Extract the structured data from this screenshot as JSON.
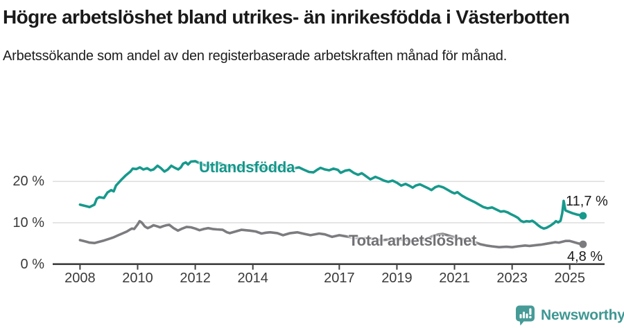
{
  "header": {
    "title": "Högre arbetslöshet bland utrikes- än inrikesfödda i Västerbotten",
    "subtitle": "Arbetssökande som andel av den registerbaserade arbetskraften månad för månad."
  },
  "footer": {
    "brand": "Newsworthy"
  },
  "colors": {
    "teal_line": "#17998C",
    "teal_label": "#14968A",
    "gray_line": "#7C7C80",
    "gray_label": "#717175",
    "grid": "#D9D9D9",
    "axis": "#3F3F3F",
    "tick_text": "#3A3A3A",
    "annotation_text": "#1A1A1A",
    "brand_teal": "#469B97",
    "brand_text": "#3E9792"
  },
  "chart_data": {
    "type": "line",
    "title": "Högre arbetslöshet bland utrikes- än inrikesfödda i Västerbotten",
    "subtitle": "Arbetssökande som andel av den registerbaserade arbetskraften månad för månad.",
    "unit": "%",
    "grid": true,
    "legend_position": "inline-labels",
    "x_axis": {
      "range": [
        2007.05,
        2026.2
      ],
      "ticks": [
        {
          "value": 2008,
          "label": "2008"
        },
        {
          "value": 2010,
          "label": "2010"
        },
        {
          "value": 2012,
          "label": "2012"
        },
        {
          "value": 2014,
          "label": "2014"
        },
        {
          "value": 2017,
          "label": "2017"
        },
        {
          "value": 2019,
          "label": "2019"
        },
        {
          "value": 2021,
          "label": "2021"
        },
        {
          "value": 2023,
          "label": "2023"
        },
        {
          "value": 2025,
          "label": "2025"
        }
      ]
    },
    "y_axis": {
      "range": [
        0,
        26.5
      ],
      "ticks": [
        {
          "value": 0,
          "label": "0 %"
        },
        {
          "value": 10,
          "label": "10 %"
        },
        {
          "value": 20,
          "label": "20 %"
        }
      ]
    },
    "series": [
      {
        "name": "Utlandsfödda",
        "end_label": "11,7 %",
        "end_value": 11.7,
        "color": "#17998C",
        "points": [
          [
            2008.0,
            14.4
          ],
          [
            2008.17,
            14.1
          ],
          [
            2008.33,
            13.8
          ],
          [
            2008.5,
            14.4
          ],
          [
            2008.58,
            15.8
          ],
          [
            2008.67,
            16.2
          ],
          [
            2008.83,
            16.0
          ],
          [
            2008.95,
            17.3
          ],
          [
            2009.08,
            17.9
          ],
          [
            2009.17,
            17.6
          ],
          [
            2009.25,
            19.0
          ],
          [
            2009.42,
            20.3
          ],
          [
            2009.58,
            21.4
          ],
          [
            2009.75,
            22.4
          ],
          [
            2009.83,
            23.1
          ],
          [
            2009.96,
            23.0
          ],
          [
            2010.08,
            23.4
          ],
          [
            2010.2,
            22.9
          ],
          [
            2010.33,
            23.2
          ],
          [
            2010.45,
            22.7
          ],
          [
            2010.55,
            22.9
          ],
          [
            2010.69,
            23.8
          ],
          [
            2010.81,
            23.2
          ],
          [
            2010.93,
            22.4
          ],
          [
            2011.05,
            22.9
          ],
          [
            2011.17,
            23.8
          ],
          [
            2011.29,
            23.3
          ],
          [
            2011.41,
            22.9
          ],
          [
            2011.5,
            23.4
          ],
          [
            2011.58,
            24.3
          ],
          [
            2011.67,
            24.6
          ],
          [
            2011.75,
            24.1
          ],
          [
            2011.85,
            24.8
          ],
          [
            2012.0,
            24.9
          ],
          [
            2012.15,
            24.4
          ],
          [
            2012.3,
            24.0
          ],
          [
            2012.5,
            23.6
          ],
          [
            2012.7,
            24.1
          ],
          [
            2012.85,
            24.4
          ],
          [
            2013.0,
            24.0
          ],
          [
            2013.25,
            23.5
          ],
          [
            2013.5,
            23.2
          ],
          [
            2013.75,
            23.7
          ],
          [
            2014.0,
            23.9
          ],
          [
            2014.25,
            23.4
          ],
          [
            2014.5,
            23.0
          ],
          [
            2014.75,
            23.3
          ],
          [
            2015.0,
            23.5
          ],
          [
            2015.25,
            23.1
          ],
          [
            2015.45,
            23.2
          ],
          [
            2015.6,
            23.4
          ],
          [
            2015.75,
            22.9
          ],
          [
            2015.95,
            22.3
          ],
          [
            2016.1,
            22.2
          ],
          [
            2016.25,
            22.9
          ],
          [
            2016.35,
            23.3
          ],
          [
            2016.5,
            22.9
          ],
          [
            2016.65,
            22.7
          ],
          [
            2016.8,
            23.1
          ],
          [
            2016.95,
            22.8
          ],
          [
            2017.05,
            22.1
          ],
          [
            2017.2,
            22.6
          ],
          [
            2017.35,
            22.8
          ],
          [
            2017.5,
            22.1
          ],
          [
            2017.65,
            21.6
          ],
          [
            2017.78,
            22.0
          ],
          [
            2017.92,
            21.3
          ],
          [
            2018.08,
            20.5
          ],
          [
            2018.25,
            21.1
          ],
          [
            2018.4,
            20.7
          ],
          [
            2018.55,
            20.2
          ],
          [
            2018.7,
            19.9
          ],
          [
            2018.85,
            20.2
          ],
          [
            2019.0,
            19.7
          ],
          [
            2019.15,
            19.0
          ],
          [
            2019.3,
            19.4
          ],
          [
            2019.45,
            18.9
          ],
          [
            2019.55,
            18.5
          ],
          [
            2019.65,
            19.0
          ],
          [
            2019.8,
            19.3
          ],
          [
            2019.95,
            18.8
          ],
          [
            2020.1,
            18.3
          ],
          [
            2020.2,
            17.9
          ],
          [
            2020.33,
            18.6
          ],
          [
            2020.45,
            18.9
          ],
          [
            2020.6,
            18.6
          ],
          [
            2020.75,
            18.0
          ],
          [
            2020.9,
            17.4
          ],
          [
            2021.0,
            17.1
          ],
          [
            2021.1,
            17.4
          ],
          [
            2021.25,
            16.6
          ],
          [
            2021.4,
            16.0
          ],
          [
            2021.55,
            15.5
          ],
          [
            2021.7,
            15.0
          ],
          [
            2021.85,
            14.4
          ],
          [
            2022.0,
            13.8
          ],
          [
            2022.15,
            13.5
          ],
          [
            2022.3,
            13.7
          ],
          [
            2022.45,
            13.2
          ],
          [
            2022.6,
            12.7
          ],
          [
            2022.72,
            12.8
          ],
          [
            2022.85,
            12.5
          ],
          [
            2022.95,
            12.1
          ],
          [
            2023.1,
            11.6
          ],
          [
            2023.2,
            11.2
          ],
          [
            2023.3,
            10.5
          ],
          [
            2023.4,
            10.2
          ],
          [
            2023.5,
            10.4
          ],
          [
            2023.6,
            10.3
          ],
          [
            2023.7,
            10.5
          ],
          [
            2023.8,
            10.0
          ],
          [
            2023.9,
            9.4
          ],
          [
            2024.0,
            8.9
          ],
          [
            2024.1,
            8.6
          ],
          [
            2024.2,
            8.8
          ],
          [
            2024.33,
            9.3
          ],
          [
            2024.45,
            9.9
          ],
          [
            2024.52,
            10.4
          ],
          [
            2024.6,
            10.1
          ],
          [
            2024.68,
            10.5
          ],
          [
            2024.74,
            12.3
          ],
          [
            2024.79,
            15.3
          ],
          [
            2024.85,
            13.0
          ],
          [
            2024.95,
            12.7
          ],
          [
            2025.1,
            12.3
          ],
          [
            2025.25,
            12.0
          ],
          [
            2025.46,
            11.7
          ]
        ]
      },
      {
        "name": "Total arbetslöshet",
        "end_label": "4,8 %",
        "end_value": 4.8,
        "color": "#7C7C80",
        "points": [
          [
            2008.0,
            5.8
          ],
          [
            2008.17,
            5.5
          ],
          [
            2008.33,
            5.2
          ],
          [
            2008.5,
            5.1
          ],
          [
            2008.67,
            5.4
          ],
          [
            2008.83,
            5.7
          ],
          [
            2009.0,
            6.1
          ],
          [
            2009.17,
            6.5
          ],
          [
            2009.33,
            7.0
          ],
          [
            2009.5,
            7.5
          ],
          [
            2009.63,
            7.9
          ],
          [
            2009.72,
            8.3
          ],
          [
            2009.8,
            8.6
          ],
          [
            2009.88,
            8.5
          ],
          [
            2010.0,
            9.6
          ],
          [
            2010.07,
            10.4
          ],
          [
            2010.15,
            10.0
          ],
          [
            2010.25,
            9.1
          ],
          [
            2010.35,
            8.7
          ],
          [
            2010.45,
            9.0
          ],
          [
            2010.55,
            9.4
          ],
          [
            2010.65,
            9.2
          ],
          [
            2010.78,
            8.9
          ],
          [
            2010.9,
            9.2
          ],
          [
            2011.0,
            9.4
          ],
          [
            2011.1,
            9.5
          ],
          [
            2011.25,
            8.7
          ],
          [
            2011.4,
            8.1
          ],
          [
            2011.55,
            8.6
          ],
          [
            2011.7,
            9.0
          ],
          [
            2011.85,
            8.9
          ],
          [
            2012.0,
            8.6
          ],
          [
            2012.15,
            8.2
          ],
          [
            2012.3,
            8.5
          ],
          [
            2012.45,
            8.7
          ],
          [
            2012.6,
            8.5
          ],
          [
            2012.75,
            8.4
          ],
          [
            2012.95,
            8.3
          ],
          [
            2013.1,
            7.7
          ],
          [
            2013.2,
            7.5
          ],
          [
            2013.4,
            7.9
          ],
          [
            2013.6,
            8.3
          ],
          [
            2013.75,
            8.2
          ],
          [
            2013.9,
            8.1
          ],
          [
            2014.1,
            7.9
          ],
          [
            2014.3,
            7.4
          ],
          [
            2014.45,
            7.6
          ],
          [
            2014.6,
            7.7
          ],
          [
            2014.85,
            7.5
          ],
          [
            2015.05,
            7.0
          ],
          [
            2015.3,
            7.5
          ],
          [
            2015.55,
            7.7
          ],
          [
            2015.8,
            7.3
          ],
          [
            2016.0,
            7.0
          ],
          [
            2016.3,
            7.4
          ],
          [
            2016.5,
            7.2
          ],
          [
            2016.75,
            6.6
          ],
          [
            2017.0,
            7.0
          ],
          [
            2017.25,
            6.7
          ],
          [
            2017.5,
            6.4
          ],
          [
            2017.75,
            6.2
          ],
          [
            2018.0,
            6.3
          ],
          [
            2018.25,
            6.0
          ],
          [
            2018.5,
            5.8
          ],
          [
            2018.75,
            6.0
          ],
          [
            2019.0,
            6.1
          ],
          [
            2019.25,
            5.8
          ],
          [
            2019.5,
            5.6
          ],
          [
            2019.75,
            5.8
          ],
          [
            2020.0,
            6.0
          ],
          [
            2020.25,
            6.8
          ],
          [
            2020.45,
            7.2
          ],
          [
            2020.6,
            7.3
          ],
          [
            2020.75,
            7.0
          ],
          [
            2020.9,
            6.7
          ],
          [
            2021.1,
            6.4
          ],
          [
            2021.25,
            6.1
          ],
          [
            2021.4,
            5.8
          ],
          [
            2021.6,
            5.5
          ],
          [
            2021.75,
            5.2
          ],
          [
            2021.9,
            4.8
          ],
          [
            2022.1,
            4.5
          ],
          [
            2022.3,
            4.3
          ],
          [
            2022.55,
            4.1
          ],
          [
            2022.8,
            4.2
          ],
          [
            2023.0,
            4.1
          ],
          [
            2023.2,
            4.3
          ],
          [
            2023.45,
            4.5
          ],
          [
            2023.6,
            4.4
          ],
          [
            2023.85,
            4.6
          ],
          [
            2024.0,
            4.7
          ],
          [
            2024.25,
            5.0
          ],
          [
            2024.5,
            5.3
          ],
          [
            2024.62,
            5.2
          ],
          [
            2024.85,
            5.6
          ],
          [
            2025.0,
            5.6
          ],
          [
            2025.15,
            5.3
          ],
          [
            2025.3,
            5.0
          ],
          [
            2025.46,
            4.8
          ]
        ]
      }
    ]
  }
}
